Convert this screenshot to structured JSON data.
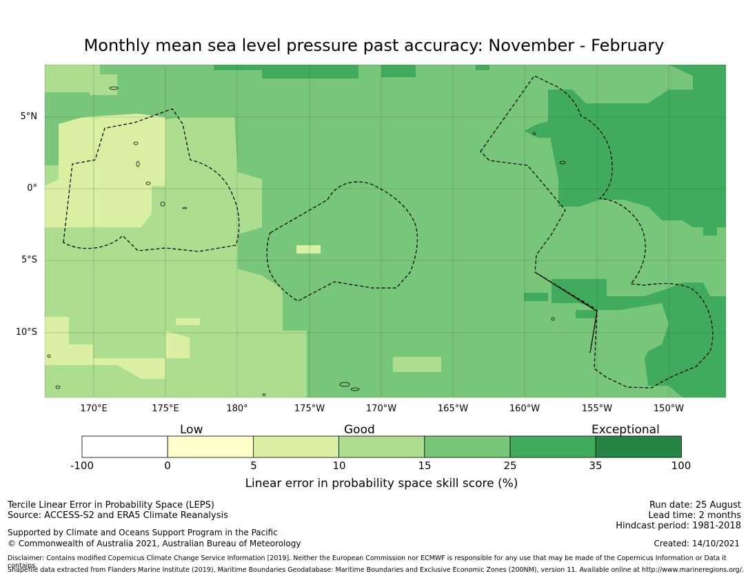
{
  "title": "Monthly mean sea level pressure past accuracy: November - February",
  "map": {
    "lat_labels": [
      "5°N",
      "0°",
      "5°S",
      "10°S"
    ],
    "lon_labels": [
      "170°E",
      "175°E",
      "180°",
      "175°W",
      "170°W",
      "165°W",
      "160°W",
      "155°W",
      "150°W"
    ],
    "gridline_color": "#3a6e3a"
  },
  "colorbar": {
    "category_labels": {
      "low": "Low",
      "good": "Good",
      "exceptional": "Exceptional"
    },
    "ticks": [
      "-100",
      "0",
      "5",
      "10",
      "15",
      "25",
      "35",
      "100"
    ],
    "bins": [
      {
        "range": "-100–0",
        "color": "#ffffff"
      },
      {
        "range": "0–5",
        "color": "#ffffcc"
      },
      {
        "range": "5–10",
        "color": "#d9f0a3"
      },
      {
        "range": "10–15",
        "color": "#addd8e"
      },
      {
        "range": "15–25",
        "color": "#78c679"
      },
      {
        "range": "25–35",
        "color": "#41ab5d"
      },
      {
        "range": "35–100",
        "color": "#238443"
      }
    ],
    "title": "Linear error in probability space skill score (%)"
  },
  "footer": {
    "left_line1": "Tercile Linear Error in Probability Space (LEPS)",
    "left_line2": "Source: ACCESS-S2 and ERA5 Climate Reanalysis",
    "support1": "Supported by Climate and Oceans Support Program in the Pacific",
    "support2": "© Commonwealth of Australia 2021, Australian Bureau of Meteorology",
    "run_date": "Run date: 25 August",
    "lead_time": "Lead time: 2 months",
    "hindcast": "Hindcast period: 1981-2018",
    "created": "Created: 14/10/2021",
    "disclaimer1": "Disclaimer: Contains modified Copernicus Climate Change Service Information [2019]. Neither the European Commission nor ECMWF is responsible for any use that may be made of the Copernicus Information or Data it contains.",
    "disclaimer2": "Shapefile data extracted from Flanders Marine Institute (2019), Maritime Boundaries Geodatabase: Maritime Boundaries and Exclusive Economic Zones (200NM), version 11. Available online at http://www.marineregions.org/."
  }
}
